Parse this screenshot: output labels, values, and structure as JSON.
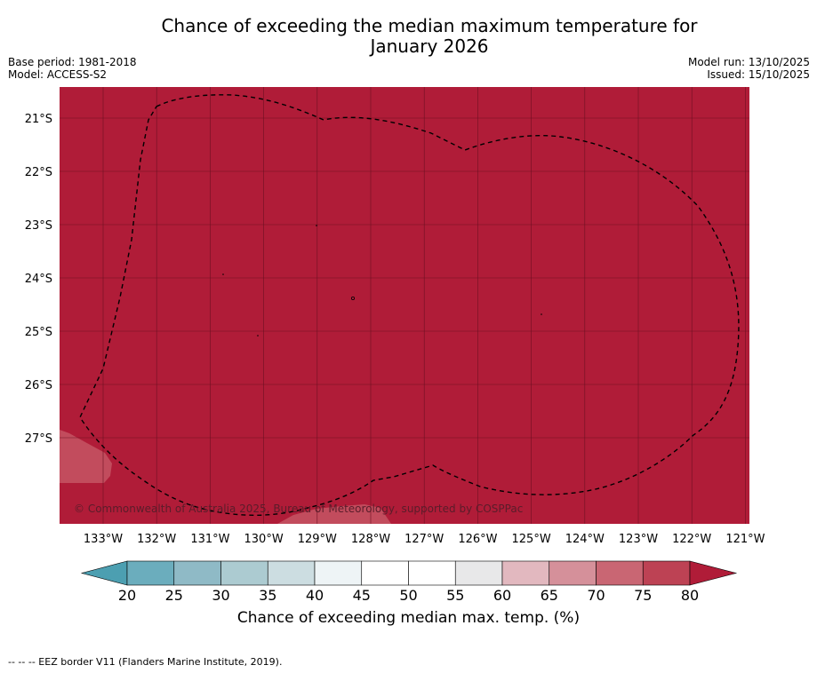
{
  "title": {
    "line1": "Chance of exceeding the median maximum temperature for",
    "line2": "January 2026"
  },
  "meta": {
    "base_period": "Base period: 1981-2018",
    "model": "Model: ACCESS-S2",
    "model_run": "Model run: 13/10/2025",
    "issued": "Issued: 15/10/2025"
  },
  "map": {
    "lat_labels": [
      "21°S",
      "22°S",
      "23°S",
      "24°S",
      "25°S",
      "26°S",
      "27°S"
    ],
    "lon_labels": [
      "133°W",
      "132°W",
      "131°W",
      "130°W",
      "129°W",
      "128°W",
      "127°W",
      "126°W",
      "125°W",
      "124°W",
      "123°W",
      "122°W",
      "121°W"
    ],
    "copyright": "© Commonwealth of Australia 2025, Bureau of Meteorology, supported by COSPPac",
    "fill_color": "#b01c38"
  },
  "colorbar": {
    "ticks": [
      "20",
      "25",
      "30",
      "35",
      "40",
      "45",
      "50",
      "55",
      "60",
      "65",
      "70",
      "75",
      "80"
    ],
    "colors": [
      "#6badbd",
      "#8fbac6",
      "#accbd1",
      "#ccdde1",
      "#eef4f6",
      "#ffffff",
      "#ffffff",
      "#e8e8e9",
      "#e2b8bf",
      "#d5909a",
      "#c96673",
      "#bd4254"
    ],
    "under_color": "#4c9fb1",
    "over_color": "#b01c38",
    "label": "Chance of exceeding median max. temp. (%)"
  },
  "footer": "--  --  -- EEZ border V11 (Flanders Marine Institute, 2019)."
}
